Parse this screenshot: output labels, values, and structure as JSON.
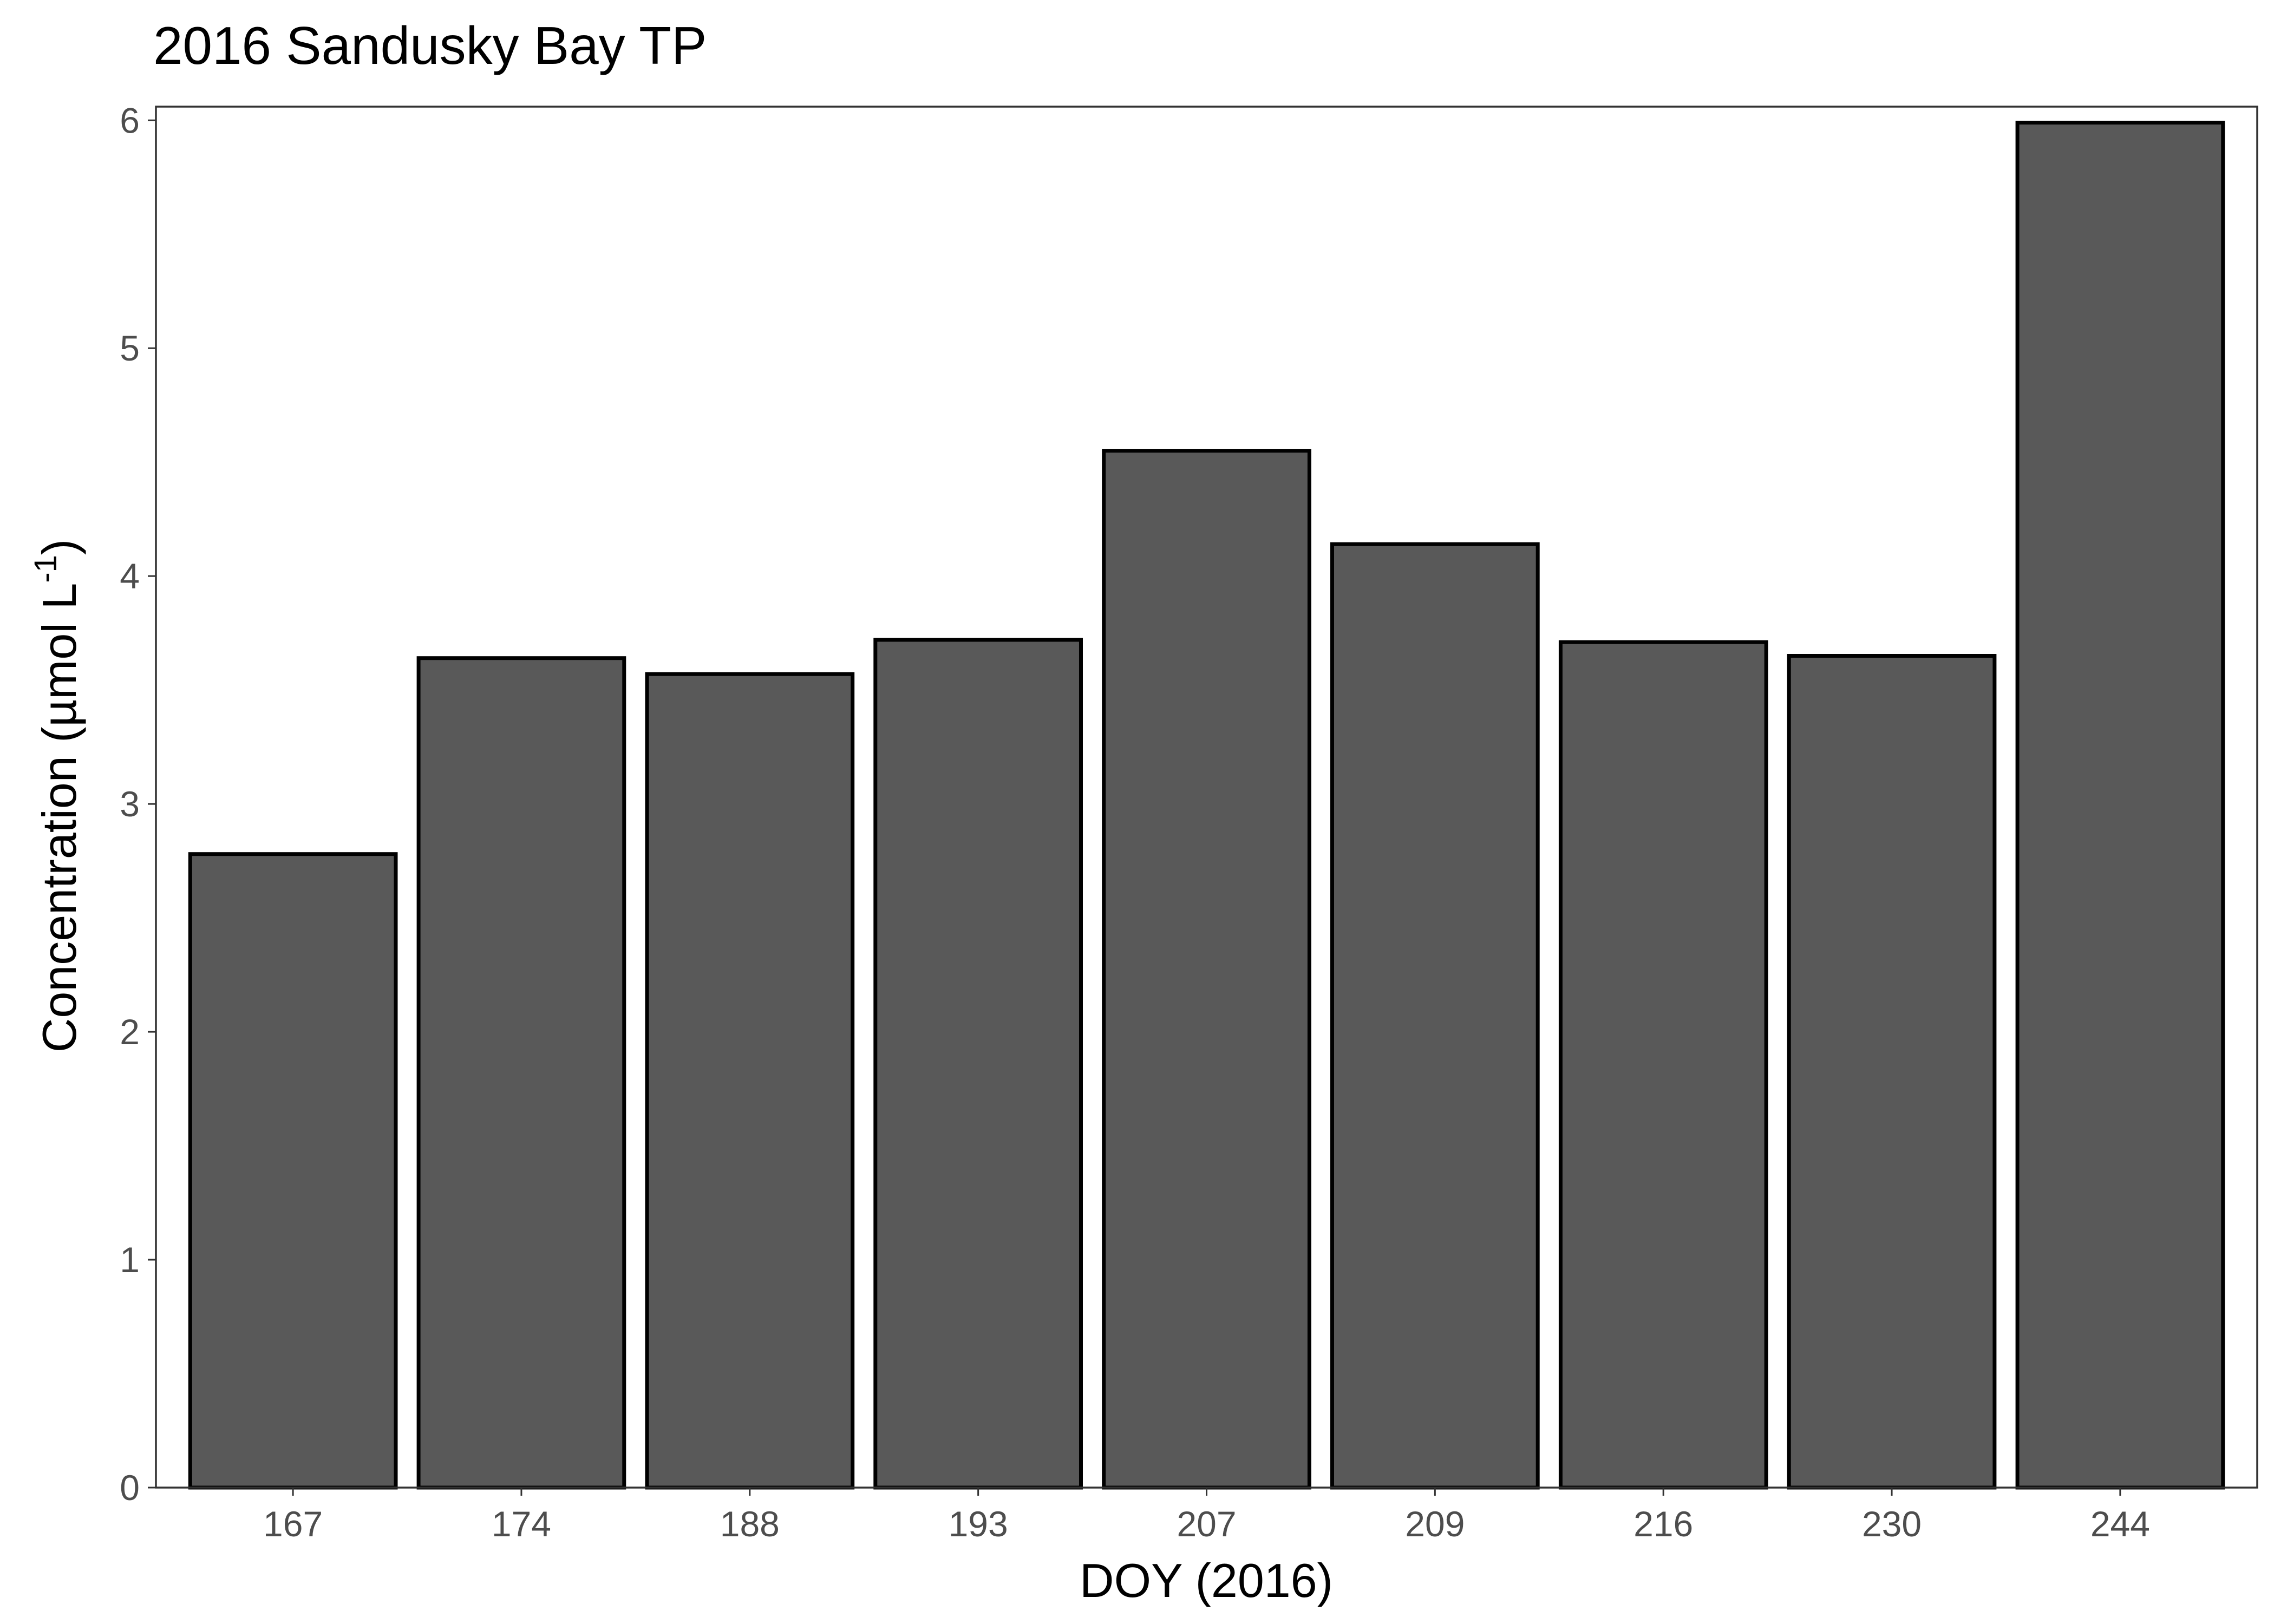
{
  "chart_data": {
    "type": "bar",
    "title": "2016 Sandusky Bay TP",
    "xlabel": "DOY (2016)",
    "ylabel": {
      "text_before": "Concentration (µmol L",
      "superscript": "-1",
      "text_after": ")"
    },
    "categories": [
      "167",
      "174",
      "188",
      "193",
      "207",
      "209",
      "216",
      "230",
      "244"
    ],
    "values": [
      2.78,
      3.64,
      3.57,
      3.72,
      4.55,
      4.14,
      3.71,
      3.65,
      5.99
    ],
    "ylim": [
      0,
      6.06
    ],
    "yticks": [
      "0",
      "1",
      "2",
      "3",
      "4",
      "5",
      "6"
    ],
    "bar_fill": "#595959",
    "bar_outline": "#000000",
    "grid": false,
    "legend": "none"
  }
}
